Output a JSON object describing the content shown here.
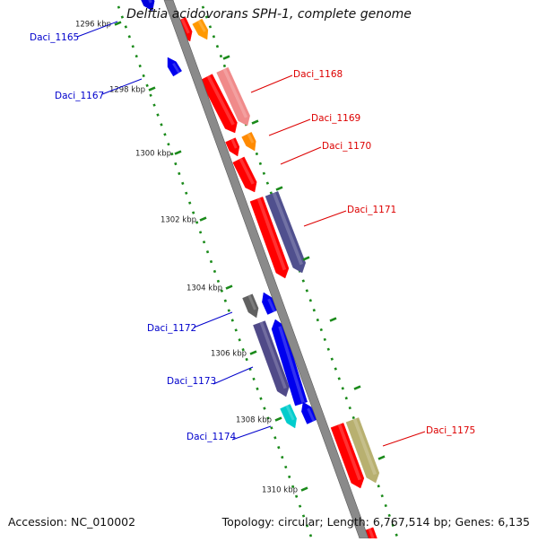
{
  "title": "Delftia acidovorans SPH-1, complete genome",
  "footer": {
    "accession": "Accession: NC_010002",
    "summary": "Topology: circular; Length: 6,767,514 bp; Genes: 6,135"
  },
  "colors": {
    "backbone": "#888888",
    "tick": "#1a8a1a",
    "left_label": "#0000cc",
    "right_label": "#dd0000",
    "scale_text": "#222222"
  },
  "scale_ticks": [
    "1296 kbp",
    "1298 kbp",
    "1300 kbp",
    "1302 kbp",
    "1304 kbp",
    "1306 kbp",
    "1308 kbp",
    "1310 kbp"
  ],
  "gene_labels_left": [
    "Daci_1165",
    "Daci_1167",
    "Daci_1172",
    "Daci_1173",
    "Daci_1174"
  ],
  "gene_labels_right": [
    "Daci_1168",
    "Daci_1169",
    "Daci_1170",
    "Daci_1171",
    "Daci_1175"
  ]
}
